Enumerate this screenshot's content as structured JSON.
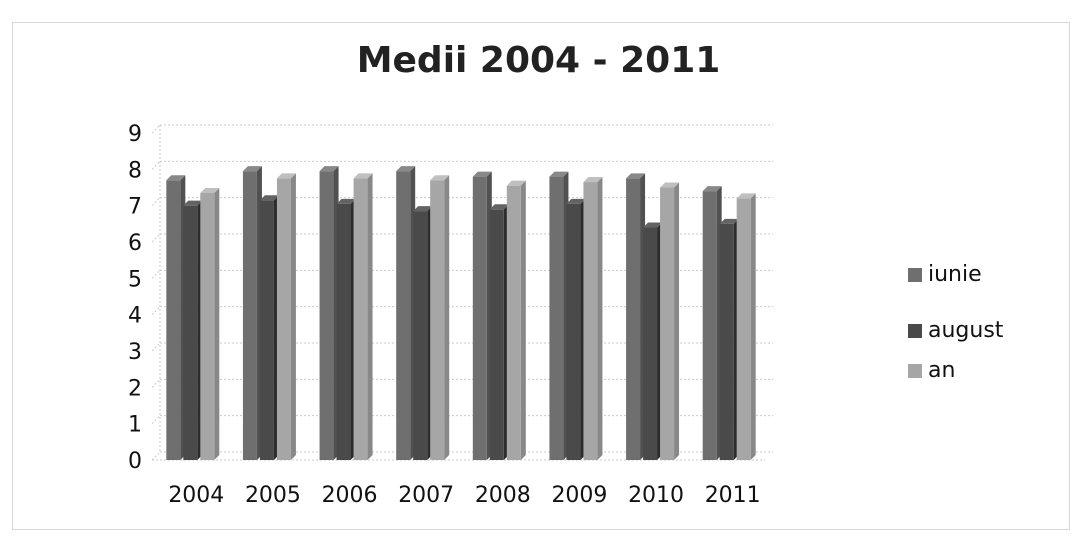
{
  "chart_data": {
    "type": "bar",
    "title": "Medii 2004 - 2011",
    "categories": [
      "2004",
      "2005",
      "2006",
      "2007",
      "2008",
      "2009",
      "2010",
      "2011"
    ],
    "series": [
      {
        "name": "iunie",
        "values": [
          7.7,
          7.95,
          7.95,
          7.95,
          7.8,
          7.8,
          7.75,
          7.4
        ]
      },
      {
        "name": "august",
        "values": [
          7.0,
          7.15,
          7.05,
          6.85,
          6.9,
          7.05,
          6.4,
          6.5
        ]
      },
      {
        "name": "an",
        "values": [
          7.35,
          7.75,
          7.75,
          7.7,
          7.55,
          7.65,
          7.5,
          7.2
        ]
      }
    ],
    "yticks": [
      "0",
      "1",
      "2",
      "3",
      "4",
      "5",
      "6",
      "7",
      "8",
      "9"
    ],
    "ylim": [
      0,
      9
    ],
    "grid": true,
    "legend_position": "right"
  },
  "colors": {
    "iunie": "#6f6f6f",
    "august": "#4a4a4a",
    "an": "#a6a6a6",
    "grid": "#c9c9c9"
  }
}
